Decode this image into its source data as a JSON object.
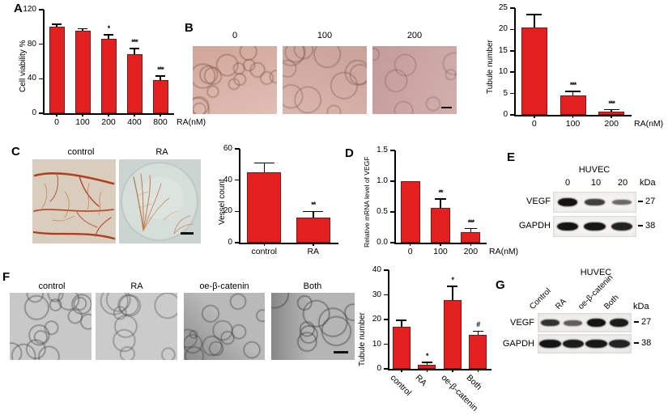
{
  "colors": {
    "bar": "#e32020",
    "bar_border": "#8a1111",
    "background": "#ffffff"
  },
  "panels": {
    "A": {
      "label": "A",
      "chart": {
        "type": "bar",
        "ylabel": "Cell viability %",
        "ylim": [
          0,
          120
        ],
        "yticks": [
          "0",
          "40",
          "80",
          "120"
        ],
        "categories": [
          "0",
          "100",
          "200",
          "400",
          "800"
        ],
        "values": [
          100,
          96,
          86,
          68,
          38
        ],
        "errors": [
          3,
          2,
          5,
          7,
          5
        ],
        "sig": [
          "",
          "",
          "*",
          "***",
          "***"
        ],
        "x_suffix": "RA(nM)"
      }
    },
    "B": {
      "label": "B",
      "image_labels": [
        "0",
        "100",
        "200"
      ],
      "chart": {
        "type": "bar",
        "ylabel": "Tubule number",
        "ylim": [
          0,
          25
        ],
        "yticks": [
          "0",
          "5",
          "10",
          "15",
          "20",
          "25"
        ],
        "categories": [
          "0",
          "100",
          "200"
        ],
        "values": [
          20.5,
          4.5,
          0.7
        ],
        "errors": [
          3,
          1,
          0.5
        ],
        "sig": [
          "",
          "***",
          "***"
        ],
        "x_suffix": "RA(nM)"
      }
    },
    "C": {
      "label": "C",
      "image_labels": [
        "control",
        "RA"
      ],
      "chart": {
        "type": "bar",
        "ylabel": "Vessel count",
        "ylim": [
          0,
          60
        ],
        "yticks": [
          "0",
          "20",
          "40",
          "60"
        ],
        "categories": [
          "control",
          "RA"
        ],
        "values": [
          45,
          16
        ],
        "errors": [
          6,
          4
        ],
        "sig": [
          "",
          "**"
        ]
      }
    },
    "D": {
      "label": "D",
      "chart": {
        "type": "bar",
        "ylabel": "Relative mRNA level of VEGF",
        "ylim": [
          0,
          1.5
        ],
        "yticks": [
          "0.0",
          "0.5",
          "1.0",
          "1.5"
        ],
        "categories": [
          "0",
          "100",
          "200"
        ],
        "values": [
          1.0,
          0.56,
          0.17
        ],
        "errors": [
          0,
          0.15,
          0.06
        ],
        "sig": [
          "",
          "**",
          "***"
        ],
        "x_suffix": "RA(nM)"
      }
    },
    "E": {
      "label": "E",
      "blot": {
        "header": "HUVEC",
        "unit": "kDa",
        "lanes": [
          "0",
          "10",
          "20"
        ],
        "rows": [
          {
            "name": "VEGF",
            "marker": "27",
            "bands": [
              1,
              0.72,
              0.45
            ]
          },
          {
            "name": "GAPDH",
            "marker": "38",
            "bands": [
              1,
              0.97,
              0.9
            ]
          }
        ]
      }
    },
    "F": {
      "label": "F",
      "image_labels": [
        "control",
        "RA",
        "oe-β-catenin",
        "Both"
      ],
      "chart": {
        "type": "bar",
        "ylabel": "Tubule number",
        "ylim": [
          0,
          40
        ],
        "yticks": [
          "0",
          "10",
          "20",
          "30",
          "40"
        ],
        "categories": [
          "control",
          "RA",
          "oe-β-catenin",
          "Both"
        ],
        "values": [
          17,
          1.8,
          28,
          13.8
        ],
        "errors": [
          2.7,
          0.8,
          5.5,
          1.5
        ],
        "sig": [
          "",
          "*",
          "*",
          "#"
        ]
      }
    },
    "G": {
      "label": "G",
      "blot": {
        "header": "HUVEC",
        "unit": "kDa",
        "lanes": [
          "Control",
          "RA",
          "oe-β-catenin",
          "Both"
        ],
        "rows": [
          {
            "name": "VEGF",
            "marker": "27",
            "bands": [
              0.8,
              0.5,
              1,
              0.95
            ]
          },
          {
            "name": "GAPDH",
            "marker": "38",
            "bands": [
              1,
              0.95,
              0.97,
              0.9
            ]
          }
        ]
      }
    }
  }
}
